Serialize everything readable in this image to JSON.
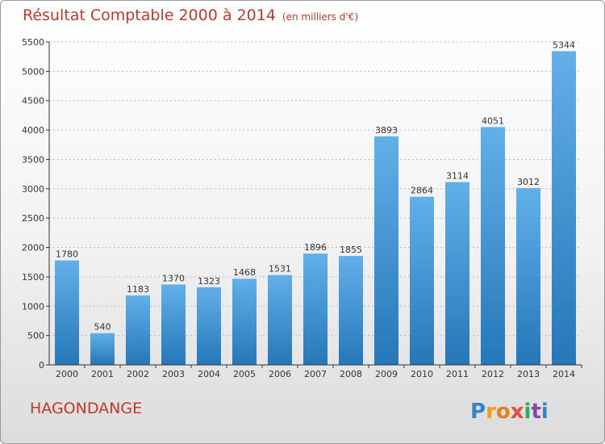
{
  "title": "Résultat Comptable 2000 à 2014",
  "subtitle": "(en milliers d'€)",
  "town": "HAGONDANGE",
  "logo_text": "Proxiti",
  "colors": {
    "title": "#c0392b",
    "bar_light": "#62b0ea",
    "bar_dark": "#2577b8",
    "axis": "#333333",
    "grid": "#bbbbbb"
  },
  "chart_data": {
    "type": "bar",
    "title": "Résultat Comptable 2000 à 2014",
    "subtitle": "(en milliers d'€)",
    "xlabel": "",
    "ylabel": "",
    "categories": [
      "2000",
      "2001",
      "2002",
      "2003",
      "2004",
      "2005",
      "2006",
      "2007",
      "2008",
      "2009",
      "2010",
      "2011",
      "2012",
      "2013",
      "2014"
    ],
    "values": [
      1780,
      540,
      1183,
      1370,
      1323,
      1468,
      1531,
      1896,
      1855,
      3893,
      2864,
      3114,
      4051,
      3012,
      5344
    ],
    "ylim": [
      0,
      5500
    ],
    "yticks": [
      0,
      500,
      1000,
      1500,
      2000,
      2500,
      3000,
      3500,
      4000,
      4500,
      5000,
      5500
    ],
    "grid": true,
    "data_labels": true
  }
}
